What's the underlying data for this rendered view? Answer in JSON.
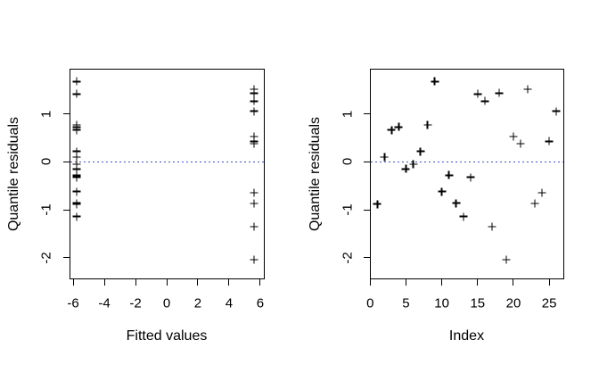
{
  "window": {
    "background": "#ffffff"
  },
  "colors": {
    "foreground": "#000000",
    "reference_line": "#3C52C8"
  },
  "chart_data": [
    {
      "type": "scatter",
      "title": "",
      "xlabel": "Fitted values",
      "ylabel": "Quantile residuals",
      "marker": "plus",
      "grid": false,
      "legend": null,
      "xlim": [
        -6.26,
        6.26
      ],
      "ylim": [
        -2.45,
        1.95
      ],
      "x_ticks": [
        -6,
        -4,
        -2,
        0,
        2,
        4,
        6
      ],
      "y_ticks": [
        1,
        0,
        -1,
        -2
      ],
      "ref_line_y": 0,
      "x": [
        -5.78,
        -5.78,
        -5.78,
        -5.78,
        -5.78,
        -5.78,
        -5.78,
        -5.78,
        -5.78,
        -5.78,
        -5.78,
        -5.78,
        -5.78,
        -5.78,
        -5.78,
        5.62,
        5.62,
        5.62,
        5.62,
        5.62,
        5.62,
        5.62,
        5.62,
        5.62,
        5.62,
        5.62
      ],
      "y": [
        -0.88,
        0.1,
        0.67,
        0.73,
        -0.15,
        -0.05,
        0.22,
        0.77,
        1.68,
        -0.62,
        -0.28,
        -0.86,
        -1.14,
        -0.32,
        1.42,
        1.27,
        -1.36,
        1.44,
        -2.05,
        0.53,
        0.38,
        1.52,
        -0.87,
        -0.65,
        0.43,
        1.06
      ]
    },
    {
      "type": "scatter",
      "title": "",
      "xlabel": "Index",
      "ylabel": "Quantile residuals",
      "marker": "plus",
      "grid": false,
      "legend": null,
      "xlim": [
        -0.04,
        27.04
      ],
      "ylim": [
        -2.45,
        1.95
      ],
      "x_ticks": [
        0,
        5,
        10,
        15,
        20,
        25
      ],
      "y_ticks": [
        1,
        0,
        -1,
        -2
      ],
      "ref_line_y": 0,
      "x": [
        1,
        2,
        3,
        4,
        5,
        6,
        7,
        8,
        9,
        10,
        11,
        12,
        13,
        14,
        15,
        16,
        17,
        18,
        19,
        20,
        21,
        22,
        23,
        24,
        25,
        26
      ],
      "y": [
        -0.88,
        0.1,
        0.67,
        0.73,
        -0.15,
        -0.05,
        0.22,
        0.77,
        1.68,
        -0.62,
        -0.28,
        -0.86,
        -1.14,
        -0.32,
        1.42,
        1.27,
        -1.36,
        1.44,
        -2.05,
        0.53,
        0.38,
        1.52,
        -0.87,
        -0.65,
        0.43,
        1.06
      ]
    }
  ]
}
